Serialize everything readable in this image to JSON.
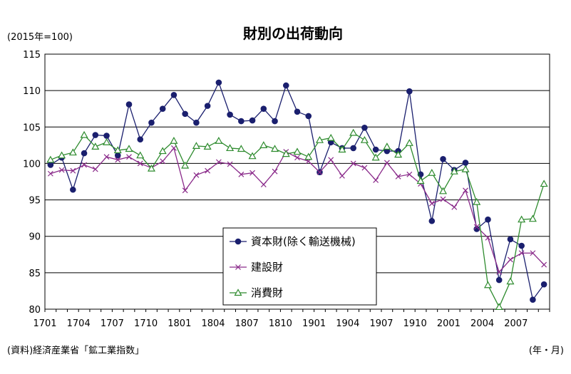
{
  "chart_data": {
    "type": "line",
    "title": "財別の出荷動向",
    "unit_label": "(2015年=100)",
    "source": "(資料)経済産業省「鉱工業指数」",
    "x_unit": "(年・月)",
    "ylim": [
      80,
      115
    ],
    "y_ticks": [
      "80",
      "85",
      "90",
      "95",
      "100",
      "105",
      "110",
      "115"
    ],
    "x_tick_labels": [
      "1701",
      "1704",
      "1707",
      "1710",
      "1801",
      "1804",
      "1807",
      "1810",
      "1901",
      "1904",
      "1907",
      "1910",
      "2001",
      "2004",
      "2007"
    ],
    "x": [
      "1701",
      "1702",
      "1703",
      "1704",
      "1705",
      "1706",
      "1707",
      "1708",
      "1709",
      "1710",
      "1711",
      "1712",
      "1801",
      "1802",
      "1803",
      "1804",
      "1805",
      "1806",
      "1807",
      "1808",
      "1809",
      "1810",
      "1811",
      "1812",
      "1901",
      "1902",
      "1903",
      "1904",
      "1905",
      "1906",
      "1907",
      "1908",
      "1909",
      "1910",
      "1911",
      "1912",
      "2001",
      "2002",
      "2003",
      "2004",
      "2005",
      "2006",
      "2007",
      "2008",
      "2009"
    ],
    "grid": true,
    "legend_position": "bottom-center",
    "series": [
      {
        "name": "資本財(除く輸送機械)",
        "color": "#1a1f6e",
        "marker": "circle",
        "values": [
          99.8,
          100.8,
          96.4,
          101.4,
          103.9,
          103.8,
          101.1,
          108.1,
          103.3,
          105.6,
          107.5,
          109.4,
          106.8,
          105.6,
          107.9,
          111.1,
          106.7,
          105.8,
          105.9,
          107.5,
          105.8,
          110.7,
          107.1,
          106.5,
          98.8,
          102.9,
          102.1,
          102.1,
          104.9,
          101.9,
          101.7,
          101.7,
          109.9,
          98.5,
          92.1,
          100.6,
          99.1,
          100.1,
          91.0,
          92.3,
          84.0,
          89.6,
          88.7,
          81.3,
          83.4
        ]
      },
      {
        "name": "建設財",
        "color": "#8a2a8a",
        "marker": "x",
        "values": [
          98.6,
          99.1,
          99.0,
          99.8,
          99.2,
          100.9,
          100.5,
          100.9,
          100.0,
          99.4,
          100.3,
          102.1,
          96.3,
          98.4,
          99.0,
          100.2,
          99.9,
          98.5,
          98.7,
          97.1,
          98.9,
          101.6,
          100.8,
          100.3,
          98.8,
          100.5,
          98.3,
          100.0,
          99.4,
          97.7,
          100.1,
          98.2,
          98.5,
          97.2,
          94.5,
          95.1,
          94.0,
          96.3,
          91.3,
          89.8,
          85.1,
          86.8,
          87.7,
          87.7,
          86.1
        ]
      },
      {
        "name": "消費財",
        "color": "#2e8b2e",
        "marker": "triangle",
        "values": [
          100.5,
          101.1,
          101.5,
          103.9,
          102.3,
          102.9,
          101.8,
          102.0,
          101.1,
          99.3,
          101.7,
          103.1,
          99.7,
          102.4,
          102.3,
          103.1,
          102.1,
          102.0,
          101.0,
          102.5,
          102.0,
          101.3,
          101.6,
          100.9,
          103.2,
          103.5,
          101.9,
          104.2,
          103.2,
          100.8,
          102.3,
          101.2,
          102.8,
          97.6,
          98.7,
          96.2,
          98.9,
          99.2,
          94.7,
          83.3,
          80.3,
          83.8,
          92.3,
          92.4,
          97.2
        ]
      }
    ]
  }
}
